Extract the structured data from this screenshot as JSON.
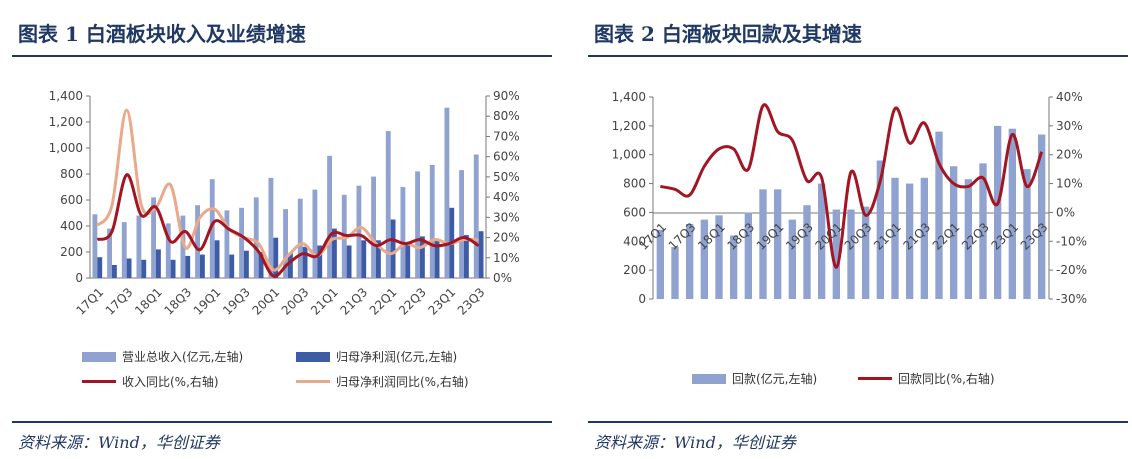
{
  "left": {
    "title": "图表 1 白酒板块收入及业绩增速",
    "source": "资料来源：Wind，华创证券",
    "legend": {
      "bar1": "营业总收入(亿元,左轴)",
      "bar2": "归母净利润(亿元,左轴)",
      "line1": "收入同比(%,右轴)",
      "line2": "归母净利润同比(%,右轴)"
    }
  },
  "right": {
    "title": "图表 2 白酒板块回款及其增速",
    "source": "资料来源：Wind，华创证券",
    "legend": {
      "bar1": "回款(亿元,左轴)",
      "line1": "回款同比(%,右轴)"
    }
  },
  "colors": {
    "bar_light": "#8FA2D0",
    "bar_dark": "#3E5BA6",
    "line_red": "#A31523",
    "line_orange": "#E9A98B",
    "title_blue": "#1F3864"
  },
  "chart_data": [
    {
      "type": "bar",
      "categories": [
        "17Q1",
        "17Q2",
        "17Q3",
        "17Q4",
        "18Q1",
        "18Q2",
        "18Q3",
        "18Q4",
        "19Q1",
        "19Q2",
        "19Q3",
        "19Q4",
        "20Q1",
        "20Q2",
        "20Q3",
        "20Q4",
        "21Q1",
        "21Q2",
        "21Q3",
        "21Q4",
        "22Q1",
        "22Q2",
        "22Q3",
        "22Q4",
        "23Q1",
        "23Q2",
        "23Q3"
      ],
      "x_tick_labels": [
        "17Q1",
        "17Q3",
        "18Q1",
        "18Q3",
        "19Q1",
        "19Q3",
        "20Q1",
        "20Q3",
        "21Q1",
        "21Q3",
        "22Q1",
        "22Q3",
        "23Q1",
        "23Q3"
      ],
      "y_left": {
        "min": 0,
        "max": 1400,
        "ticks": [
          "0",
          "200",
          "400",
          "600",
          "800",
          "1,000",
          "1,200",
          "1,400"
        ]
      },
      "y_right": {
        "min": 0,
        "max": 90,
        "ticks": [
          "0%",
          "10%",
          "20%",
          "30%",
          "40%",
          "50%",
          "60%",
          "70%",
          "80%",
          "90%"
        ]
      },
      "series": [
        {
          "name": "营业总收入(亿元,左轴)",
          "axis": "left",
          "type": "bar",
          "values": [
            490,
            380,
            430,
            480,
            620,
            420,
            480,
            560,
            760,
            520,
            540,
            620,
            770,
            530,
            610,
            680,
            940,
            640,
            710,
            780,
            1130,
            700,
            820,
            870,
            1310,
            830,
            950
          ]
        },
        {
          "name": "归母净利润(亿元,左轴)",
          "axis": "left",
          "type": "bar",
          "values": [
            160,
            100,
            150,
            140,
            220,
            140,
            170,
            180,
            290,
            180,
            210,
            200,
            310,
            190,
            240,
            250,
            380,
            250,
            290,
            290,
            450,
            270,
            320,
            300,
            540,
            330,
            360
          ]
        },
        {
          "name": "收入同比(%,右轴)",
          "axis": "right",
          "type": "line",
          "values": [
            19,
            23,
            51,
            31,
            35,
            18,
            23,
            14,
            28,
            24,
            20,
            13,
            1,
            7,
            12,
            11,
            22,
            21,
            21,
            16,
            19,
            17,
            19,
            16,
            17,
            20,
            16
          ]
        },
        {
          "name": "归母净利润同比(%,右轴)",
          "axis": "right",
          "type": "line",
          "values": [
            26,
            36,
            83,
            36,
            35,
            46,
            15,
            30,
            34,
            24,
            20,
            17,
            4,
            11,
            17,
            11,
            19,
            20,
            25,
            17,
            12,
            17,
            15,
            19,
            17,
            19,
            19
          ]
        }
      ]
    },
    {
      "type": "bar",
      "categories": [
        "17Q1",
        "17Q2",
        "17Q3",
        "17Q4",
        "18Q1",
        "18Q2",
        "18Q3",
        "18Q4",
        "19Q1",
        "19Q2",
        "19Q3",
        "19Q4",
        "20Q1",
        "20Q2",
        "20Q3",
        "20Q4",
        "21Q1",
        "21Q2",
        "21Q3",
        "21Q4",
        "22Q1",
        "22Q2",
        "22Q3",
        "22Q4",
        "23Q1",
        "23Q2",
        "23Q3"
      ],
      "x_tick_labels": [
        "17Q1",
        "17Q3",
        "18Q1",
        "18Q3",
        "19Q1",
        "19Q3",
        "20Q1",
        "20Q3",
        "21Q1",
        "21Q3",
        "22Q1",
        "22Q3",
        "23Q1",
        "23Q3"
      ],
      "y_left": {
        "min": 0,
        "max": 1400,
        "ticks": [
          "0",
          "200",
          "400",
          "600",
          "800",
          "1,000",
          "1,200",
          "1,400"
        ]
      },
      "y_right": {
        "min": -30,
        "max": 40,
        "ticks": [
          "-30%",
          "-20%",
          "-10%",
          "0%",
          "10%",
          "20%",
          "30%",
          "40%"
        ]
      },
      "series": [
        {
          "name": "回款(亿元,左轴)",
          "axis": "left",
          "type": "bar",
          "values": [
            480,
            360,
            520,
            550,
            580,
            440,
            600,
            760,
            760,
            550,
            650,
            800,
            620,
            620,
            640,
            960,
            840,
            800,
            840,
            1160,
            920,
            830,
            940,
            1200,
            1180,
            900,
            1140
          ]
        },
        {
          "name": "回款同比(%,右轴)",
          "axis": "right",
          "type": "line",
          "values": [
            9,
            8,
            6,
            16,
            22,
            22,
            15,
            37,
            28,
            25,
            11,
            12,
            -19,
            14,
            -1,
            11,
            36,
            24,
            31,
            17,
            10,
            9,
            12,
            3,
            27,
            9,
            21
          ]
        }
      ]
    }
  ]
}
